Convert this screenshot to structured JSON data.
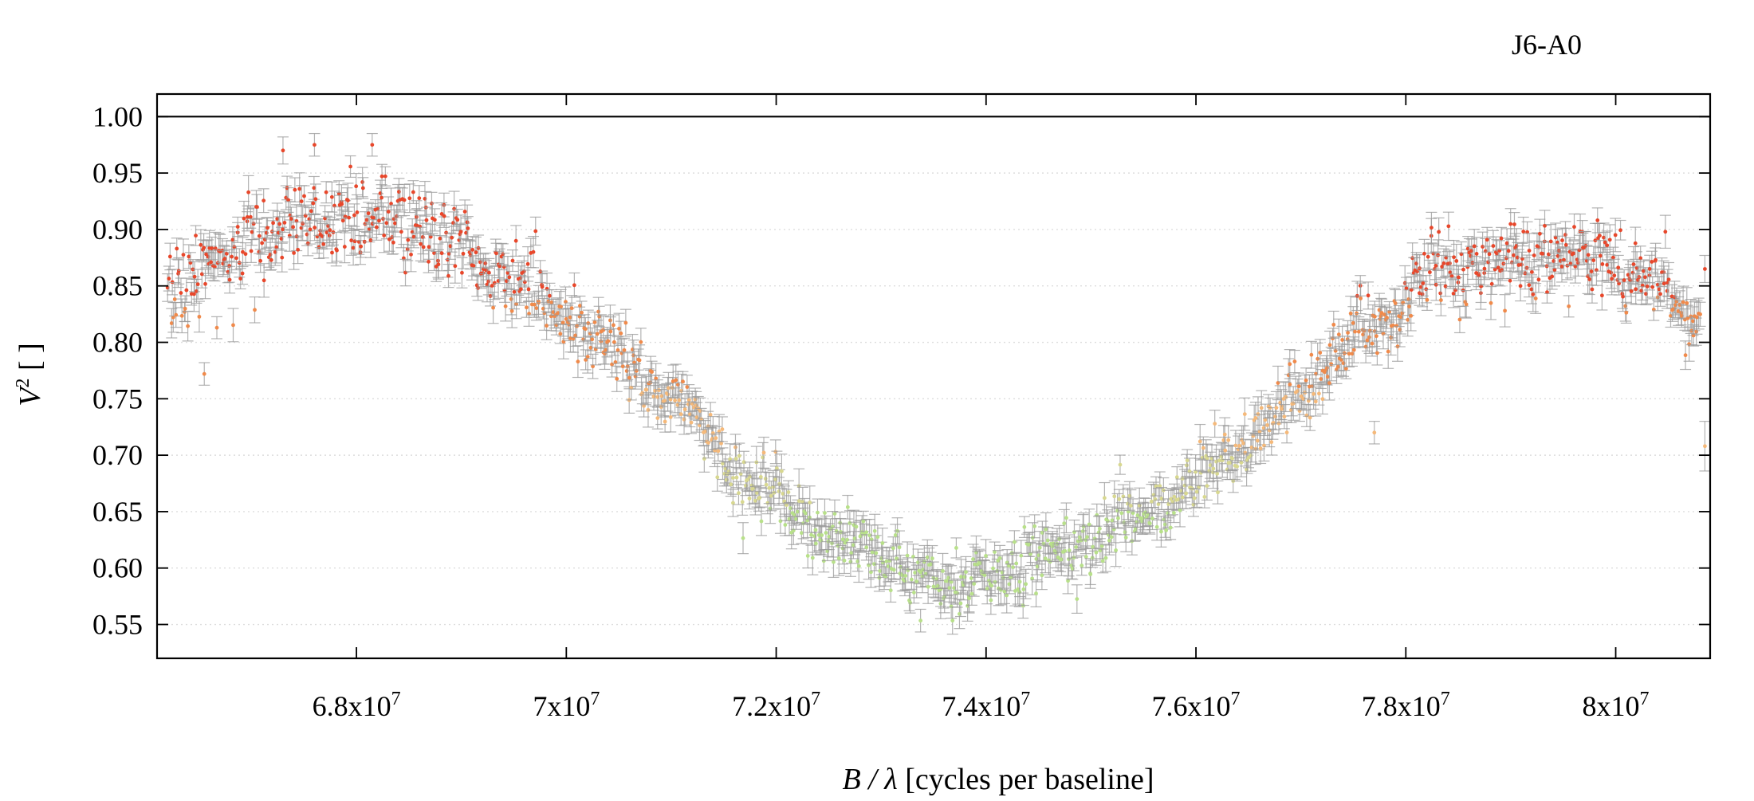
{
  "chart_data": {
    "type": "scatter",
    "title": "J6-A0",
    "xlabel_italic": "B / λ",
    "xlabel_rest": " [cycles per baseline]",
    "ylabel_base": "V",
    "ylabel_sup": "2",
    "ylabel_rest": " [ ]",
    "xlim": [
      66100000,
      80900000
    ],
    "ylim": [
      0.52,
      1.02
    ],
    "reference_line_y": 1.0,
    "grid": "horizontal dotted",
    "error_bars": true,
    "x_ticks": [
      {
        "value": 68000000,
        "mantissa": "6.8x10",
        "exponent": "7"
      },
      {
        "value": 70000000,
        "mantissa": "7x10",
        "exponent": "7"
      },
      {
        "value": 72000000,
        "mantissa": "7.2x10",
        "exponent": "7"
      },
      {
        "value": 74000000,
        "mantissa": "7.4x10",
        "exponent": "7"
      },
      {
        "value": 76000000,
        "mantissa": "7.6x10",
        "exponent": "7"
      },
      {
        "value": 78000000,
        "mantissa": "7.8x10",
        "exponent": "7"
      },
      {
        "value": 80000000,
        "mantissa": "8x10",
        "exponent": "7"
      }
    ],
    "y_ticks": [
      {
        "value": 0.55,
        "label": "0.55"
      },
      {
        "value": 0.6,
        "label": "0.60"
      },
      {
        "value": 0.65,
        "label": "0.65"
      },
      {
        "value": 0.7,
        "label": "0.70"
      },
      {
        "value": 0.75,
        "label": "0.75"
      },
      {
        "value": 0.8,
        "label": "0.80"
      },
      {
        "value": 0.85,
        "label": "0.85"
      },
      {
        "value": 0.9,
        "label": "0.90"
      },
      {
        "value": 0.95,
        "label": "0.95"
      },
      {
        "value": 1.0,
        "label": "1.00"
      }
    ],
    "trend_knots": [
      {
        "x": 66200000,
        "y": 0.855
      },
      {
        "x": 67000000,
        "y": 0.885
      },
      {
        "x": 67500000,
        "y": 0.905
      },
      {
        "x": 68200000,
        "y": 0.915
      },
      {
        "x": 68900000,
        "y": 0.89
      },
      {
        "x": 69500000,
        "y": 0.855
      },
      {
        "x": 70300000,
        "y": 0.805
      },
      {
        "x": 71000000,
        "y": 0.745
      },
      {
        "x": 71800000,
        "y": 0.675
      },
      {
        "x": 72600000,
        "y": 0.625
      },
      {
        "x": 73400000,
        "y": 0.59
      },
      {
        "x": 74000000,
        "y": 0.592
      },
      {
        "x": 74700000,
        "y": 0.615
      },
      {
        "x": 75500000,
        "y": 0.645
      },
      {
        "x": 76300000,
        "y": 0.695
      },
      {
        "x": 77000000,
        "y": 0.755
      },
      {
        "x": 77700000,
        "y": 0.815
      },
      {
        "x": 78300000,
        "y": 0.86
      },
      {
        "x": 79000000,
        "y": 0.875
      },
      {
        "x": 79800000,
        "y": 0.875
      },
      {
        "x": 80400000,
        "y": 0.855
      },
      {
        "x": 80800000,
        "y": 0.805
      }
    ],
    "point_count": 1300,
    "scatter_sd": 0.014,
    "error_bar_half_height": 0.012,
    "outliers": [
      {
        "x": 66550000,
        "y": 0.772,
        "err": 0.01
      },
      {
        "x": 67300000,
        "y": 0.97,
        "err": 0.012
      },
      {
        "x": 67600000,
        "y": 0.975,
        "err": 0.01
      },
      {
        "x": 68150000,
        "y": 0.975,
        "err": 0.01
      },
      {
        "x": 77700000,
        "y": 0.72,
        "err": 0.01
      },
      {
        "x": 80850000,
        "y": 0.708,
        "err": 0.022
      },
      {
        "x": 80850000,
        "y": 0.865,
        "err": 0.012
      }
    ],
    "colors": {
      "high": "#e8472b",
      "upper": "#f08a4b",
      "mid": "#f5b97a",
      "lower": "#d8d890",
      "low": "#b8e08a",
      "error_bar": "#9a9a9a",
      "grid": "#dddddd",
      "frame": "#000000"
    }
  }
}
